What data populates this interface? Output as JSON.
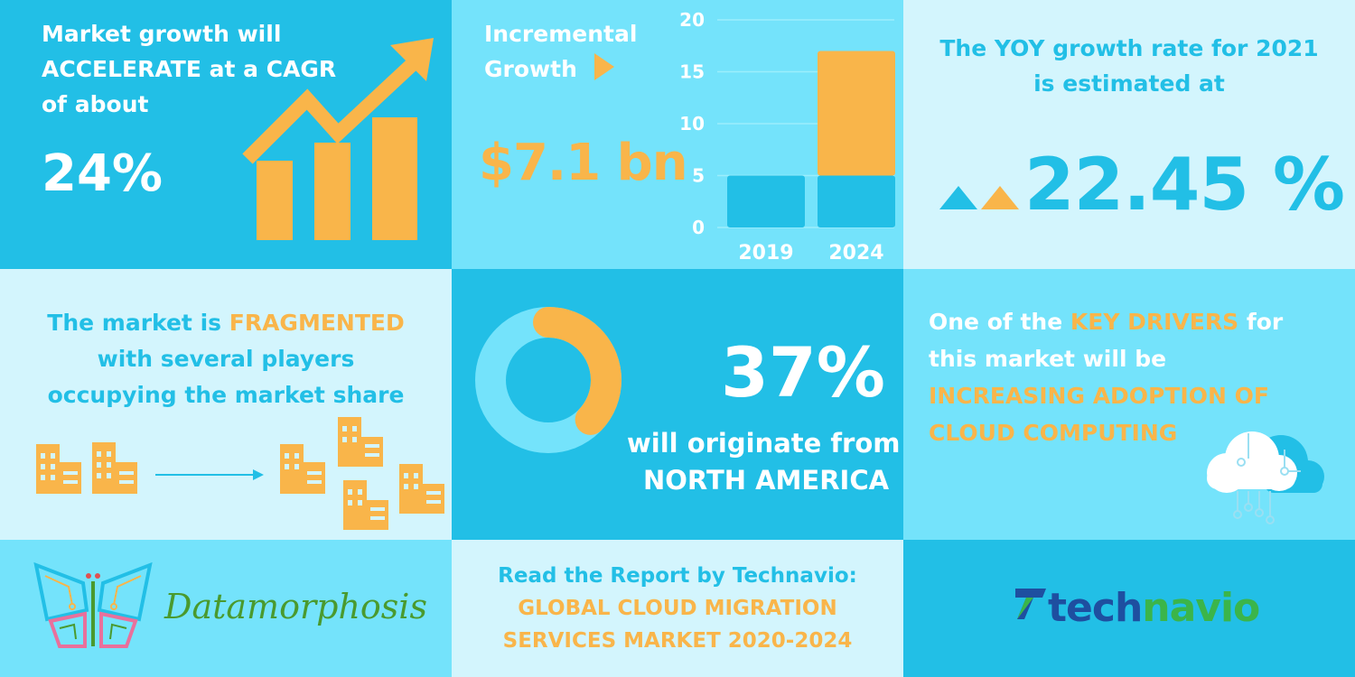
{
  "cagr": {
    "line1": "Market growth will",
    "line2": "ACCELERATE at a CAGR",
    "line3": "of about",
    "value": "24%"
  },
  "incremental": {
    "line1": "Incremental",
    "line2": "Growth",
    "value": "$7.1 bn"
  },
  "chart_data": {
    "type": "bar",
    "categories": [
      "2019",
      "2024"
    ],
    "series": [
      {
        "values": [
          5,
          5
        ]
      },
      {
        "values": [
          0,
          12
        ]
      }
    ],
    "yticks": [
      "0",
      "5",
      "10",
      "15",
      "20"
    ],
    "ylim": [
      0,
      20
    ],
    "colors": [
      "#22bfe6",
      "#f9b54a"
    ]
  },
  "yoy": {
    "line1": "The YOY growth rate for 2021",
    "line2": "is estimated at",
    "value": "22.45 %"
  },
  "fragmented": {
    "pre": "The market is ",
    "highlight": "FRAGMENTED",
    "line2": "with several players",
    "line3": "occupying the market share"
  },
  "region": {
    "value": "37%",
    "line1": "will originate from",
    "line2": "NORTH AMERICA",
    "share": 0.37
  },
  "drivers": {
    "pre": "One of the ",
    "highlight": "KEY DRIVERS",
    "post": " for",
    "line2": "this market will be",
    "line3": "INCREASING ADOPTION OF",
    "line4": "CLOUD COMPUTING"
  },
  "report": {
    "line1": "Read the Report by Technavio:",
    "line2": "GLOBAL CLOUD MIGRATION",
    "line3": "SERVICES MARKET 2020-2024"
  },
  "logos": {
    "datamorphosis": "Datamorphosis",
    "technavio_a": "tech",
    "technavio_b": "navio"
  },
  "colors": {
    "orange": "#f9b54a",
    "blue": "#22bfe6",
    "light_blue": "#74e3fb",
    "pale_blue": "#d3f5fd"
  }
}
